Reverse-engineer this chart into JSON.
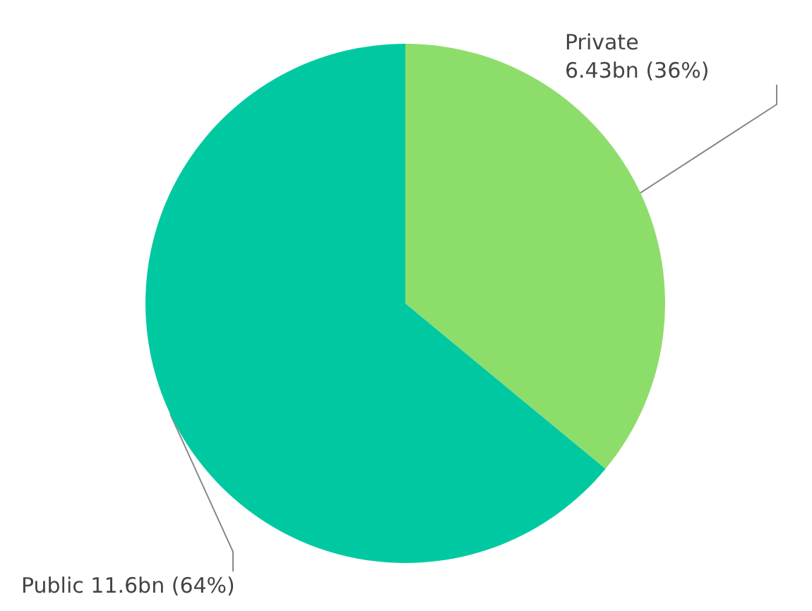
{
  "chart_data": {
    "type": "pie",
    "categories": [
      "Private",
      "Public"
    ],
    "values": [
      36,
      64
    ],
    "colors": [
      "#8ddd6b",
      "#00c9a2"
    ],
    "value_labels": [
      "6.43bn (36%)",
      "11.6bn (64%)"
    ]
  }
}
